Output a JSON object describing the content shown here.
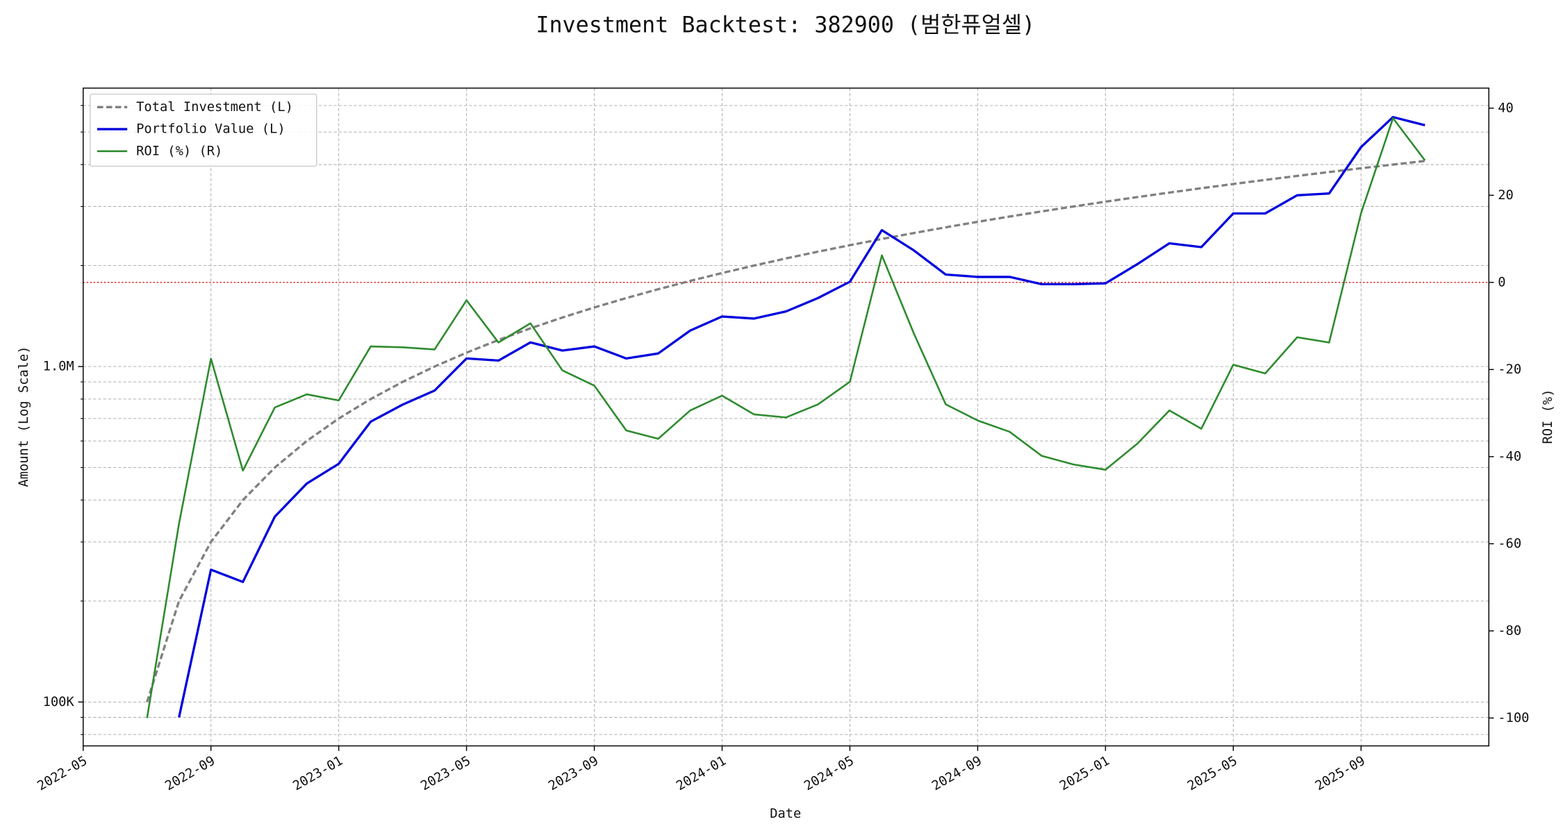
{
  "chart_data": {
    "type": "line",
    "title": "Investment Backtest: 382900 (범한퓨얼셀)",
    "xlabel": "Date",
    "ylabel": "Amount (Log Scale)",
    "y2label": "ROI (%)",
    "ylabel_color": "#0000cc",
    "y2label_color": "#228b22",
    "yscale": "log",
    "grid": true,
    "legend": "upper left",
    "x": [
      "2022-07",
      "2022-08",
      "2022-09",
      "2022-10",
      "2022-11",
      "2022-12",
      "2023-01",
      "2023-02",
      "2023-03",
      "2023-04",
      "2023-05",
      "2023-06",
      "2023-07",
      "2023-08",
      "2023-09",
      "2023-10",
      "2023-11",
      "2023-12",
      "2024-01",
      "2024-02",
      "2024-03",
      "2024-04",
      "2024-05",
      "2024-06",
      "2024-07",
      "2024-08",
      "2024-09",
      "2024-10",
      "2024-11",
      "2024-12",
      "2025-01",
      "2025-02",
      "2025-03",
      "2025-04",
      "2025-05",
      "2025-06",
      "2025-07",
      "2025-08",
      "2025-09",
      "2025-10",
      "2025-11"
    ],
    "xlim": [
      "2022-05",
      "2026-01"
    ],
    "xticks": [
      "2022-05",
      "2022-09",
      "2023-01",
      "2023-05",
      "2023-09",
      "2024-01",
      "2024-05",
      "2024-09",
      "2025-01",
      "2025-05",
      "2025-09"
    ],
    "ylim": [
      74000,
      6760000
    ],
    "yticks": [
      {
        "value": 100000,
        "label": "100K"
      },
      {
        "value": 1000000,
        "label": "1.0M"
      }
    ],
    "yminorticks": [
      80000,
      90000,
      200000,
      300000,
      400000,
      500000,
      600000,
      700000,
      800000,
      900000,
      2000000,
      3000000,
      4000000,
      5000000,
      6000000
    ],
    "y2lim": [
      -106.4,
      44.6
    ],
    "y2ticks": [
      -100,
      -80,
      -60,
      -40,
      -20,
      0,
      20,
      40
    ],
    "y2_reference_line": {
      "value": 0,
      "color": "#dd0000"
    },
    "series": [
      {
        "name": "Total Investment (L)",
        "color": "#808080",
        "dash": "dashed",
        "axis": "y",
        "values": [
          100000,
          200000,
          300000,
          400000,
          500000,
          600000,
          700000,
          800000,
          900000,
          1000000,
          1100000,
          1200000,
          1300000,
          1400000,
          1500000,
          1600000,
          1700000,
          1800000,
          1900000,
          2000000,
          2100000,
          2200000,
          2300000,
          2400000,
          2500000,
          2600000,
          2700000,
          2800000,
          2900000,
          3000000,
          3100000,
          3200000,
          3300000,
          3400000,
          3500000,
          3600000,
          3700000,
          3800000,
          3900000,
          4000000,
          4100000
        ]
      },
      {
        "name": "Portfolio Value (L)",
        "color": "#0000dd",
        "dash": "solid",
        "axis": "y",
        "values": [
          null,
          90000,
          248000,
          228000,
          357000,
          448000,
          513000,
          685000,
          770000,
          848000,
          1057000,
          1042000,
          1180000,
          1116000,
          1148000,
          1057000,
          1094000,
          1280000,
          1410000,
          1390000,
          1460000,
          1600000,
          1790000,
          2550000,
          2220000,
          1880000,
          1850000,
          1850000,
          1760000,
          1760000,
          1770000,
          2020000,
          2330000,
          2270000,
          2860000,
          2860000,
          3240000,
          3280000,
          4510000,
          5540000,
          5240000
        ]
      },
      {
        "name": "ROI (%) (R)",
        "color": "#2e8b2e",
        "dash": "solid",
        "axis": "y2",
        "values": [
          -100,
          -55.4,
          -17.5,
          -43.2,
          -28.7,
          -25.7,
          -27.1,
          -14.7,
          -14.9,
          -15.4,
          -4.1,
          -13.8,
          -9.4,
          -20.2,
          -23.7,
          -34.0,
          -35.9,
          -29.4,
          -26.0,
          -30.3,
          -31.0,
          -28.0,
          -22.8,
          6.2,
          -11.7,
          -28.0,
          -31.7,
          -34.3,
          -39.8,
          -41.8,
          -43.0,
          -37.0,
          -29.4,
          -33.6,
          -18.9,
          -20.9,
          -12.6,
          -13.8,
          15.9,
          37.7,
          28.0
        ]
      }
    ]
  }
}
